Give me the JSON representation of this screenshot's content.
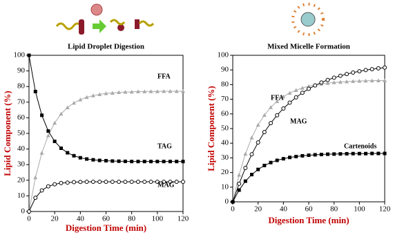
{
  "chart_data": [
    {
      "type": "line",
      "title": "Lipid Droplet Digestion",
      "x_label": "Digestion Time (min)",
      "y_label": "Lipid Component (%)",
      "xlim": [
        0,
        120
      ],
      "xticks": [
        0,
        20,
        40,
        60,
        80,
        100,
        120
      ],
      "ylim": [
        0,
        100
      ],
      "yticks": [
        0,
        10,
        20,
        30,
        40,
        50,
        60,
        70,
        80,
        90,
        100
      ],
      "x": [
        0,
        5,
        10,
        15,
        20,
        25,
        30,
        35,
        40,
        45,
        50,
        55,
        60,
        65,
        70,
        75,
        80,
        85,
        90,
        95,
        100,
        105,
        110,
        115,
        120
      ],
      "series": [
        {
          "name": "FFA",
          "color": "#aaaaaa",
          "marker": "triangle",
          "values": [
            0,
            21.8,
            37.5,
            48.7,
            56.7,
            62.5,
            66.6,
            69.5,
            71.6,
            73.2,
            74.2,
            75.0,
            75.6,
            75.9,
            76.3,
            76.5,
            76.6,
            76.8,
            76.8,
            76.9,
            76.9,
            77,
            77,
            77,
            77
          ]
        },
        {
          "name": "TAG",
          "color": "#000000",
          "marker": "square",
          "values": [
            100,
            76.8,
            61.6,
            51.5,
            44.9,
            40.5,
            37.6,
            35.7,
            34.4,
            33.6,
            33.1,
            32.7,
            32.5,
            32.3,
            32.2,
            32.1,
            32,
            32,
            32,
            32,
            32,
            32,
            32,
            32,
            32
          ]
        },
        {
          "name": "MAG",
          "color": "#000000",
          "marker": "circle",
          "values": [
            0,
            8.8,
            13.5,
            16.1,
            17.4,
            18.2,
            18.5,
            18.8,
            18.9,
            19,
            19,
            19,
            19,
            19,
            19,
            19,
            19,
            19,
            19,
            19,
            19,
            19,
            19,
            19,
            19
          ]
        }
      ]
    },
    {
      "type": "line",
      "title": "Mixed Micelle Formation",
      "x_label": "Digestion Time (min)",
      "y_label": "Lipid Component (%)",
      "xlim": [
        0,
        120
      ],
      "xticks": [
        0,
        20,
        40,
        60,
        80,
        100,
        120
      ],
      "ylim": [
        0,
        100
      ],
      "yticks": [
        0,
        10,
        20,
        30,
        40,
        50,
        60,
        70,
        80,
        90,
        100
      ],
      "x": [
        0,
        5,
        10,
        15,
        20,
        25,
        30,
        35,
        40,
        45,
        50,
        55,
        60,
        65,
        70,
        75,
        80,
        85,
        90,
        95,
        100,
        105,
        110,
        115,
        120
      ],
      "series": [
        {
          "name": "FFA",
          "color": "#aaaaaa",
          "marker": "triangle",
          "values": [
            0,
            18.4,
            32.7,
            43.8,
            52.5,
            59.2,
            64.5,
            68.6,
            71.8,
            74.3,
            76.2,
            77.7,
            78.9,
            79.8,
            80.5,
            81.0,
            81.5,
            81.8,
            82.1,
            82.3,
            82.5,
            82.6,
            82.7,
            82.8,
            82.8
          ]
        },
        {
          "name": "MAG",
          "color": "#000000",
          "marker": "circle",
          "values": [
            0,
            12.3,
            23.1,
            32.4,
            40.5,
            47.6,
            53.7,
            59.1,
            63.7,
            67.7,
            71.3,
            74.4,
            77.1,
            79.4,
            81.4,
            83.2,
            84.7,
            86.0,
            87.2,
            88.2,
            89.1,
            89.9,
            90.5,
            91.1,
            91.6
          ]
        },
        {
          "name": "Cartenoids",
          "color": "#000000",
          "marker": "square",
          "values": [
            0,
            8.0,
            14.1,
            18.6,
            22.1,
            24.8,
            26.8,
            28.3,
            29.4,
            30.3,
            30.9,
            31.4,
            31.8,
            32.1,
            32.3,
            32.5,
            32.6,
            32.7,
            32.8,
            32.9,
            32.9,
            32.9,
            33,
            33,
            33
          ]
        }
      ]
    }
  ]
}
